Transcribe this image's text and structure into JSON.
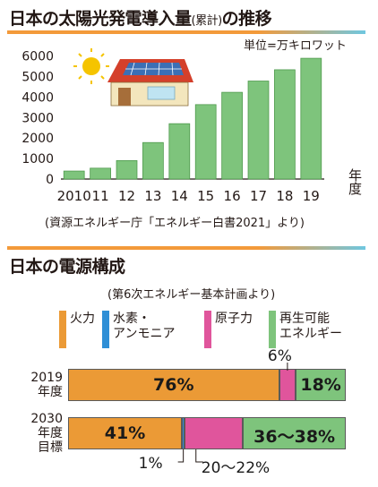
{
  "colors": {
    "bar_green": "#7ec47c",
    "fire": "#eb9a36",
    "hydrogen": "#2f8fd6",
    "nuclear": "#e0559c",
    "renewable": "#7ec47c",
    "divider_left": "#f39a3a",
    "divider_right": "#6fc7e0"
  },
  "chart_data": [
    {
      "type": "bar",
      "title": "日本の太陽光発電導入量",
      "title_suffix": "(累計)",
      "title_end": "の推移",
      "unit": "単位=万キロワット",
      "categories": [
        "2010",
        "11",
        "12",
        "13",
        "14",
        "15",
        "16",
        "17",
        "18",
        "19"
      ],
      "values": [
        390,
        530,
        900,
        1780,
        2700,
        3630,
        4230,
        4780,
        5330,
        5890
      ],
      "yticks": [
        "0",
        "1000",
        "2000",
        "3000",
        "4000",
        "5000",
        "6000"
      ],
      "ylim": [
        0,
        6200
      ],
      "xlabel": "年度",
      "source": "(資源エネルギー庁「エネルギー白書2021」より)"
    },
    {
      "type": "bar",
      "orientation": "horizontal-stacked",
      "title": "日本の電源構成",
      "note": "(第6次エネルギー基本計画より)",
      "series": [
        {
          "name": "火力",
          "color_key": "fire"
        },
        {
          "name": "水素・アンモニア",
          "color_key": "hydrogen"
        },
        {
          "name": "原子力",
          "color_key": "nuclear"
        },
        {
          "name": "再生可能エネルギー",
          "color_key": "renewable"
        }
      ],
      "rows": [
        {
          "label": [
            "2019",
            "年度"
          ],
          "values": [
            76,
            0,
            6,
            18
          ],
          "labels": [
            "76%",
            "",
            "6%",
            "18%"
          ]
        },
        {
          "label": [
            "2030",
            "年度",
            "目標"
          ],
          "values": [
            41,
            1,
            21,
            37
          ],
          "labels": [
            "41%",
            "1%",
            "20～22%",
            "36～38%"
          ]
        }
      ]
    }
  ]
}
